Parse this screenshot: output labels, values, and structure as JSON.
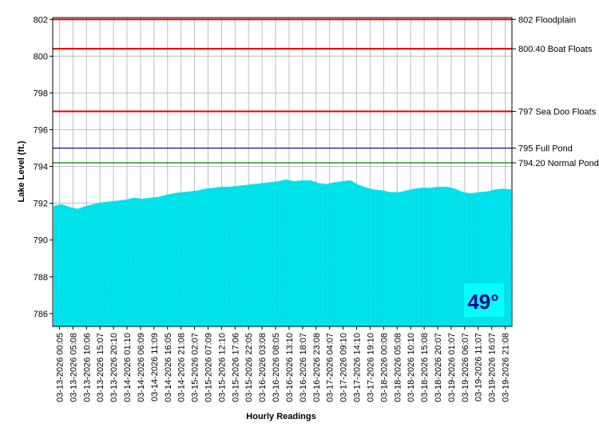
{
  "chart_data": {
    "type": "area",
    "xlabel": "Hourly Readings",
    "ylabel": "Lake Level (ft.)",
    "ylim": [
      785.3,
      802.1
    ],
    "yticks": [
      786,
      788,
      790,
      792,
      794,
      796,
      798,
      800,
      802
    ],
    "grid": true,
    "x_tick_labels": [
      "03-13-2026 00:05",
      "03-13-2026 05:08",
      "03-13-2026 10:06",
      "03-13-2026 15:07",
      "03-13-2026 20:10",
      "03-14-2026 01:10",
      "03-14-2026 06:09",
      "03-14-2026 11:09",
      "03-14-2026 16:05",
      "03-14-2026 21:08",
      "03-15-2026 02:07",
      "03-15-2026 07:09",
      "03-15-2026 12:10",
      "03-15-2026 17:06",
      "03-15-2026 22:05",
      "03-16-2026 03:08",
      "03-16-2026 08:05",
      "03-16-2026 13:10",
      "03-16-2026 18:07",
      "03-16-2026 23:08",
      "03-17-2026 04:07",
      "03-17-2026 09:10",
      "03-17-2026 14:10",
      "03-17-2026 19:10",
      "03-18-2026 00:08",
      "03-18-2026 05:08",
      "03-18-2026 10:10",
      "03-18-2026 15:08",
      "03-18-2026 20:07",
      "03-19-2026 01:07",
      "03-19-2026 06:07",
      "03-19-2026 11:07",
      "03-19-2026 16:07",
      "03-19-2026 21:08"
    ],
    "series": [
      {
        "values": [
          791.85,
          791.95,
          791.8,
          791.7,
          791.85,
          791.95,
          792.05,
          792.1,
          792.15,
          792.2,
          792.3,
          792.25,
          792.3,
          792.35,
          792.45,
          792.55,
          792.6,
          792.65,
          792.7,
          792.8,
          792.85,
          792.9,
          792.9,
          792.95,
          793.0,
          793.05,
          793.1,
          793.15,
          793.2,
          793.3,
          793.2,
          793.25,
          793.25,
          793.1,
          793.05,
          793.15,
          793.2,
          793.25,
          793.0,
          792.85,
          792.75,
          792.7,
          792.6,
          792.6,
          792.7,
          792.8,
          792.85,
          792.85,
          792.9,
          792.9,
          792.8,
          792.6,
          792.55,
          792.6,
          792.65,
          792.75,
          792.8,
          792.75
        ],
        "color": "#00e5ee"
      }
    ],
    "reference_lines": [
      {
        "value": 802,
        "label": "802 Floodplain",
        "color": "#e00000"
      },
      {
        "value": 800.4,
        "label": "800.40 Boat Floats",
        "color": "#e00000"
      },
      {
        "value": 797,
        "label": "797 Sea Doo Floats",
        "color": "#e00000"
      },
      {
        "value": 795,
        "label": "795 Full Pond",
        "color": "#000080"
      },
      {
        "value": 794.2,
        "label": "794.20 Normal Pond",
        "color": "#008000"
      }
    ],
    "annotation": {
      "text": "49°",
      "background": "#00ffff",
      "color": "#000080"
    }
  }
}
